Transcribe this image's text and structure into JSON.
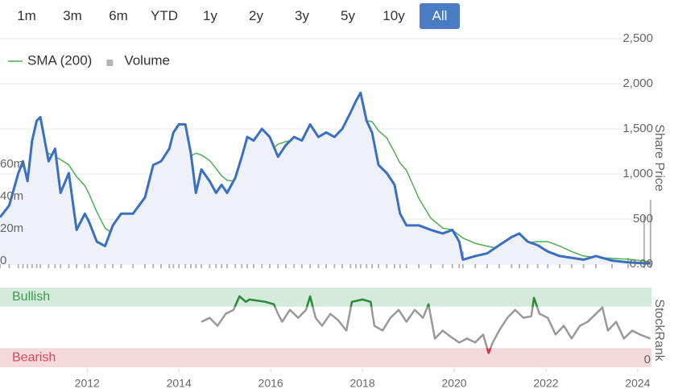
{
  "range_selector": {
    "buttons": [
      "1m",
      "3m",
      "6m",
      "YTD",
      "1y",
      "2y",
      "3y",
      "5y",
      "10y",
      "All"
    ],
    "active": "All"
  },
  "chart_data": [
    {
      "type": "line",
      "x": [
        2010.1,
        2010.3,
        2010.5,
        2010.6,
        2010.7,
        2010.8,
        2010.9,
        2010.98,
        2011.16,
        2011.3,
        2011.42,
        2011.6,
        2011.77,
        2011.95,
        2012.04,
        2012.21,
        2012.39,
        2012.56,
        2012.74,
        2013.0,
        2013.26,
        2013.44,
        2013.61,
        2013.79,
        2013.88,
        2014.0,
        2014.14,
        2014.26,
        2014.37,
        2014.49,
        2014.67,
        2014.81,
        2014.93,
        2015.05,
        2015.23,
        2015.37,
        2015.49,
        2015.63,
        2015.81,
        2015.98,
        2016.16,
        2016.33,
        2016.51,
        2016.68,
        2016.86,
        2017.04,
        2017.21,
        2017.39,
        2017.56,
        2017.74,
        2017.86,
        2017.96,
        2018.09,
        2018.21,
        2018.35,
        2018.53,
        2018.7,
        2018.82,
        2018.96,
        2019.23,
        2019.49,
        2019.75,
        2019.96,
        2020.11,
        2020.19,
        2020.46,
        2020.72,
        2020.98,
        2021.25,
        2021.42,
        2021.6,
        2021.82,
        2022.04,
        2022.3,
        2022.56,
        2022.82,
        2023.09,
        2023.44,
        2023.79,
        2024.14,
        2024.28
      ],
      "series": [
        {
          "color": "#3a6fc2",
          "values": [
            520,
            650,
            1010,
            1140,
            920,
            1370,
            1590,
            1630,
            1140,
            1280,
            790,
            1010,
            380,
            560,
            470,
            250,
            200,
            430,
            560,
            560,
            740,
            1100,
            1140,
            1280,
            1460,
            1550,
            1550,
            1230,
            790,
            1050,
            920,
            790,
            880,
            790,
            960,
            1190,
            1410,
            1370,
            1500,
            1410,
            1190,
            1320,
            1410,
            1370,
            1550,
            1410,
            1460,
            1410,
            1500,
            1680,
            1810,
            1900,
            1590,
            1460,
            1100,
            1010,
            880,
            560,
            430,
            430,
            380,
            340,
            380,
            250,
            50,
            90,
            120,
            210,
            300,
            340,
            250,
            210,
            140,
            90,
            70,
            50,
            90,
            40,
            20,
            10,
            8
          ]
        },
        {
          "name": "SMA (200)",
          "color": "#4caf50",
          "values": [
            null,
            null,
            null,
            null,
            null,
            null,
            880,
            980,
            1230,
            1190,
            1160,
            1100,
            970,
            870,
            780,
            580,
            400,
            340,
            340,
            370,
            440,
            530,
            620,
            740,
            820,
            950,
            1100,
            1200,
            1230,
            1210,
            1150,
            1060,
            980,
            930,
            920,
            920,
            940,
            1020,
            1100,
            1250,
            1330,
            1360,
            1370,
            1340,
            1320,
            1340,
            1370,
            1390,
            1410,
            1460,
            1500,
            1550,
            1590,
            1580,
            1480,
            1400,
            1240,
            1120,
            1040,
            730,
            510,
            400,
            380,
            320,
            290,
            230,
            200,
            170,
            190,
            210,
            240,
            250,
            250,
            200,
            140,
            90,
            75,
            65,
            55,
            35,
            25
          ]
        },
        {
          "name": "Volume",
          "type": "bar",
          "axis": "y2",
          "color": "#b4b4bc",
          "values": [
            2000000,
            1000000,
            2000000,
            1000000,
            1000000,
            2000000,
            2000000,
            3000000,
            2000000,
            2000000,
            1000000,
            2000000,
            3000000,
            2000000,
            2000000,
            8000000,
            3000000,
            2000000,
            2000000,
            2000000,
            2000000,
            3000000,
            2000000,
            4000000,
            3000000,
            3000000,
            2000000,
            2000000,
            3000000,
            2000000,
            2000000,
            2000000,
            2000000,
            2000000,
            2000000,
            3000000,
            2000000,
            2000000,
            2000000,
            3000000,
            8000000,
            2000000,
            2000000,
            2000000,
            2000000,
            2000000,
            2000000,
            2000000,
            2000000,
            3000000,
            3000000,
            4000000,
            3000000,
            3000000,
            5000000,
            4000000,
            6000000,
            4000000,
            4000000,
            4000000,
            4000000,
            4000000,
            5000000,
            6000000,
            8000000,
            6000000,
            5000000,
            6000000,
            5000000,
            4000000,
            4000000,
            4000000,
            3000000,
            3000000,
            3000000,
            3000000,
            3000000,
            3000000,
            4000000,
            30000000,
            40000000
          ]
        }
      ],
      "xlim": [
        2010.1,
        2024.3
      ],
      "ylim": [
        0,
        2500
      ],
      "yticks": [
        {
          "value": 0,
          "label": "0.00"
        },
        500,
        {
          "value": 1000,
          "label": "1,000"
        },
        {
          "value": 1500,
          "label": "1,500"
        },
        {
          "value": 2000,
          "label": "2,000"
        },
        {
          "value": 2500,
          "label": "2,500"
        }
      ],
      "y2lim": [
        0,
        140000000
      ],
      "y2ticks": [
        0,
        {
          "value": 20000000,
          "label": "20m"
        },
        {
          "value": 40000000,
          "label": "40m"
        },
        {
          "value": 60000000,
          "label": "60m"
        }
      ],
      "y_label": "Share Price",
      "legend": "top-left",
      "grid": true,
      "area_color": "#eef1f8"
    },
    {
      "type": "line",
      "x": [
        2014.49,
        2014.67,
        2014.84,
        2015.02,
        2015.19,
        2015.32,
        2015.46,
        2015.54,
        2015.89,
        2016.07,
        2016.16,
        2016.25,
        2016.42,
        2016.6,
        2016.77,
        2016.86,
        2016.98,
        2017.12,
        2017.3,
        2017.47,
        2017.65,
        2017.77,
        2018.0,
        2018.18,
        2018.26,
        2018.44,
        2018.61,
        2018.79,
        2018.96,
        2019.14,
        2019.32,
        2019.44,
        2019.58,
        2019.75,
        2019.93,
        2020.11,
        2020.28,
        2020.46,
        2020.63,
        2020.75,
        2020.84,
        2020.98,
        2021.16,
        2021.33,
        2021.51,
        2021.68,
        2021.74,
        2021.86,
        2022.04,
        2022.21,
        2022.39,
        2022.56,
        2022.74,
        2022.91,
        2023.09,
        2023.23,
        2023.35,
        2023.53,
        2023.7,
        2023.88,
        2024.05,
        2024.28
      ],
      "series": [
        {
          "color": "#999999",
          "values": [
            57,
            62,
            52,
            67,
            72,
            89,
            82,
            85,
            82,
            79,
            67,
            57,
            72,
            62,
            72,
            89,
            62,
            52,
            67,
            59,
            46,
            82,
            85,
            82,
            52,
            46,
            62,
            72,
            57,
            72,
            62,
            79,
            36,
            46,
            38,
            31,
            36,
            31,
            41,
            18,
            31,
            46,
            62,
            72,
            62,
            64,
            87,
            67,
            62,
            41,
            52,
            36,
            52,
            57,
            67,
            75,
            46,
            57,
            36,
            46,
            41,
            36
          ]
        }
      ],
      "bands": [
        {
          "label": "Bullish",
          "from": 76,
          "to": 100,
          "color": "#d4eadb",
          "line_color": "#2e8b3a",
          "text_color": "#3d9b4d"
        },
        {
          "label": "Bearish",
          "from": 0,
          "to": 24,
          "color": "#f4d9da",
          "line_color": "#d9304a",
          "text_color": "#d9485a"
        }
      ],
      "xlim": [
        2010.1,
        2024.3
      ],
      "xticks": [
        2012,
        2014,
        2016,
        2018,
        2020,
        2022,
        2024
      ],
      "ylim": [
        0,
        100
      ],
      "yticks": [
        0
      ],
      "y_label": "StockRank"
    }
  ]
}
